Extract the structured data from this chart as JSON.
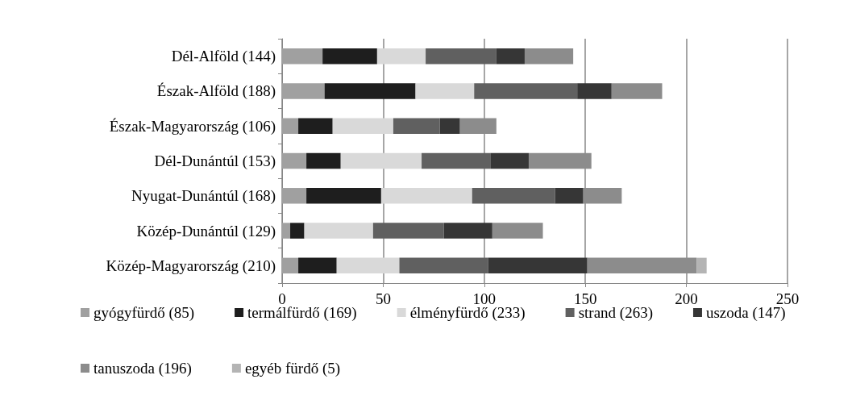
{
  "chart_data": {
    "type": "bar",
    "orientation": "horizontal",
    "stacked": true,
    "categories": [
      "Dél-Alföld (144)",
      "Észak-Alföld (188)",
      "Észak-Magyarország (106)",
      "Dél-Dunántúl (153)",
      "Nyugat-Dunántúl (168)",
      "Közép-Dunántúl (129)",
      "Közép-Magyarország (210)"
    ],
    "series": [
      {
        "name": "gyógyfürdő (85)",
        "color": "#a0a0a0",
        "values": [
          20,
          21,
          8,
          12,
          12,
          4,
          8
        ]
      },
      {
        "name": "termálfürdő (169)",
        "color": "#1e1e1e",
        "values": [
          27,
          45,
          17,
          17,
          37,
          7,
          19
        ]
      },
      {
        "name": "élményfürdő (233)",
        "color": "#d9d9d9",
        "values": [
          24,
          29,
          30,
          40,
          45,
          34,
          31
        ]
      },
      {
        "name": "strand (263)",
        "color": "#606060",
        "values": [
          35,
          51,
          23,
          34,
          41,
          35,
          44
        ]
      },
      {
        "name": "uszoda (147)",
        "color": "#363636",
        "values": [
          14,
          17,
          10,
          19,
          14,
          24,
          49
        ]
      },
      {
        "name": "tanuszoda (196)",
        "color": "#8c8c8c",
        "values": [
          24,
          25,
          18,
          31,
          19,
          25,
          54
        ]
      },
      {
        "name": "egyéb fürdő (5)",
        "color": "#b4b4b4",
        "values": [
          0,
          0,
          0,
          0,
          0,
          0,
          5
        ]
      }
    ],
    "xlim": [
      0,
      250
    ],
    "xticks": [
      0,
      50,
      100,
      150,
      200,
      250
    ],
    "grid": "x",
    "legend": "bottom"
  }
}
